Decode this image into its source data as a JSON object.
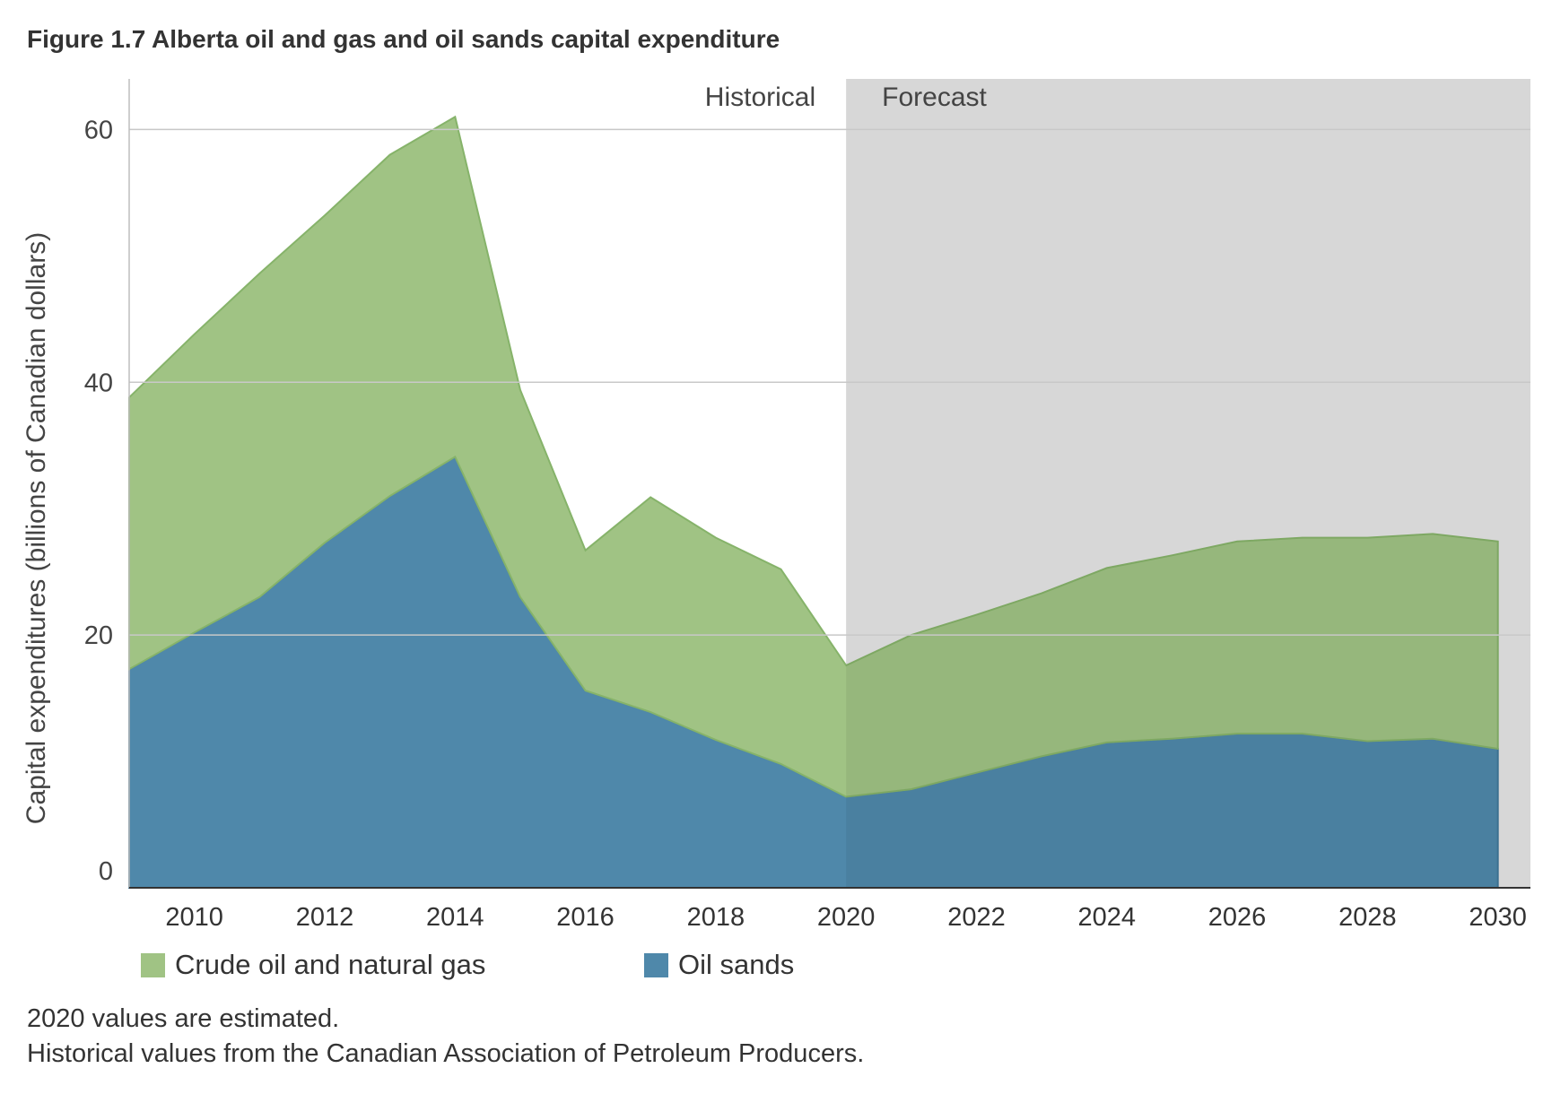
{
  "title": "Figure 1.7  Alberta oil and gas and oil sands capital expenditure",
  "chart_data": {
    "type": "area",
    "stacked": true,
    "x": [
      2009,
      2010,
      2011,
      2012,
      2013,
      2014,
      2015,
      2016,
      2017,
      2018,
      2019,
      2020,
      2021,
      2022,
      2023,
      2024,
      2025,
      2026,
      2027,
      2028,
      2029,
      2030
    ],
    "xlim": [
      2009,
      2030.5
    ],
    "x_ticks": [
      2010,
      2012,
      2014,
      2016,
      2018,
      2020,
      2022,
      2024,
      2026,
      2028,
      2030
    ],
    "ylim": [
      0,
      64
    ],
    "y_ticks": [
      0,
      20,
      40,
      60
    ],
    "ylabel": "Capital expenditures (billions of Canadian dollars)",
    "xlabel": "",
    "grid": true,
    "legend_position": "bottom",
    "series": [
      {
        "name": "Oil sands",
        "color": "#4f88aa",
        "values": [
          17.3,
          20.2,
          23.0,
          27.3,
          31.0,
          34.1,
          23.0,
          15.6,
          13.9,
          11.7,
          9.8,
          7.2,
          7.8,
          9.1,
          10.4,
          11.5,
          11.8,
          12.2,
          12.2,
          11.6,
          11.8,
          11.0
        ]
      },
      {
        "name": "Crude oil and natural gas",
        "color": "#a0c384",
        "values": [
          21.5,
          23.6,
          25.6,
          25.9,
          27.0,
          26.9,
          16.4,
          11.1,
          17.0,
          16.0,
          15.4,
          10.4,
          12.2,
          12.5,
          12.9,
          13.8,
          14.5,
          15.2,
          15.5,
          16.1,
          16.2,
          16.4
        ]
      }
    ],
    "regions": [
      {
        "label": "Historical",
        "from": 2009,
        "to": 2020
      },
      {
        "label": "Forecast",
        "from": 2020,
        "to": 2030.5,
        "shaded": true,
        "shade_color": "#e5e5e5"
      }
    ]
  },
  "legend": {
    "items": [
      {
        "label": "Crude oil and natural gas",
        "color": "#a0c384"
      },
      {
        "label": "Oil sands",
        "color": "#4f88aa"
      }
    ]
  },
  "notes": {
    "line1": "2020 values are estimated.",
    "line2": "Historical values from the Canadian Association of Petroleum Producers."
  }
}
